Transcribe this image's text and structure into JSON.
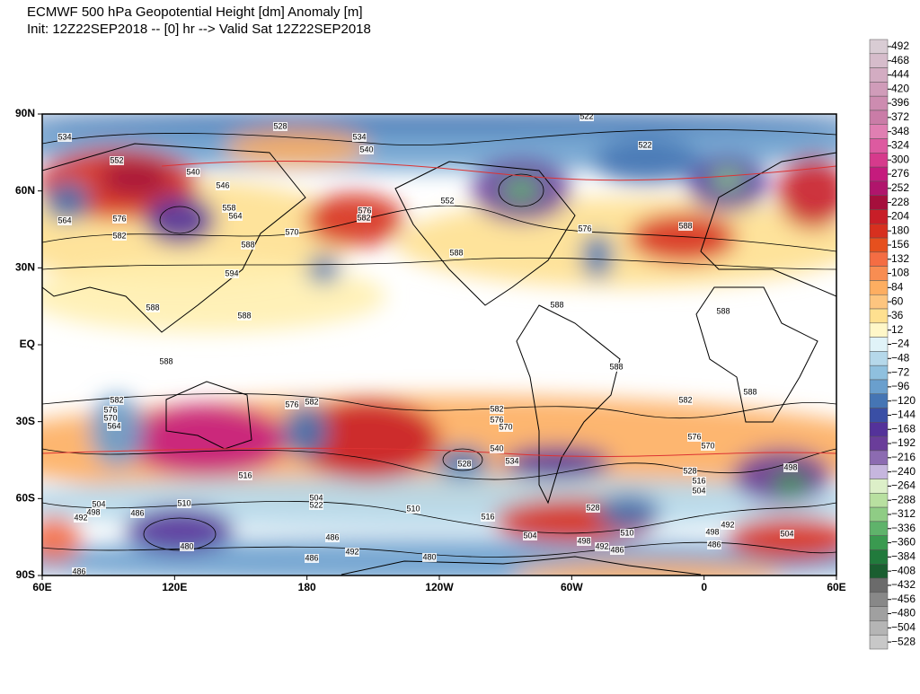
{
  "header": {
    "title": "ECMWF 500 hPa Geopotential Height [dm] Anomaly [m]",
    "subtitle": "Init: 12Z22SEP2018 -- [0] hr --> Valid Sat 12Z22SEP2018"
  },
  "map": {
    "lat_labels": [
      "90N",
      "60N",
      "30N",
      "EQ",
      "30S",
      "60S",
      "90S"
    ],
    "lon_labels": [
      "60E",
      "120E",
      "180",
      "120W",
      "60W",
      "0",
      "60E"
    ],
    "contour_labels": [
      "534",
      "528",
      "534",
      "540",
      "522",
      "522",
      "552",
      "540",
      "546",
      "558",
      "564",
      "564",
      "576",
      "582",
      "570",
      "588",
      "576",
      "582",
      "552",
      "588",
      "576",
      "588",
      "594",
      "588",
      "588",
      "588",
      "588",
      "588",
      "588",
      "582",
      "576",
      "570",
      "564",
      "576",
      "582",
      "582",
      "576",
      "570",
      "534",
      "528",
      "576",
      "570",
      "582",
      "588",
      "528",
      "516",
      "504",
      "498",
      "510",
      "504",
      "522",
      "510",
      "516",
      "528",
      "504",
      "498",
      "492",
      "486",
      "480",
      "486",
      "492",
      "486",
      "480",
      "504",
      "498",
      "492",
      "486",
      "510",
      "486",
      "492",
      "498",
      "504",
      "486",
      "516",
      "540"
    ]
  },
  "colorbar": {
    "labels": [
      "492",
      "468",
      "444",
      "420",
      "396",
      "372",
      "348",
      "324",
      "300",
      "276",
      "252",
      "228",
      "204",
      "180",
      "156",
      "132",
      "108",
      "84",
      "60",
      "36",
      "12",
      "−24",
      "−48",
      "−72",
      "−96",
      "−120",
      "−144",
      "−168",
      "−192",
      "−216",
      "−240",
      "−264",
      "−288",
      "−312",
      "−336",
      "−360",
      "−384",
      "−408",
      "−432",
      "−456",
      "−480",
      "−504",
      "−528"
    ],
    "colors": [
      "#d9ccd4",
      "#d6bccb",
      "#d3acc2",
      "#d09cb9",
      "#cd8cb0",
      "#ca7ca7",
      "#e07fb2",
      "#dd5aa0",
      "#d63a8c",
      "#c51b7d",
      "#b0156c",
      "#a50f3c",
      "#c81e28",
      "#d7301f",
      "#e6501e",
      "#f46d43",
      "#f88d52",
      "#fdae61",
      "#fdc57f",
      "#fee090",
      "#fff7c8",
      "#e0f3f8",
      "#b5d8ea",
      "#8fc0de",
      "#6a9fcd",
      "#4575b4",
      "#3a4fa5",
      "#54329a",
      "#6a3d9a",
      "#8c6bb1",
      "#c6b6de",
      "#dcefc8",
      "#b8e0a0",
      "#8fcc85",
      "#5fb36b",
      "#3a9a50",
      "#217a3c",
      "#1a5e30",
      "#6b6b6b",
      "#888888",
      "#a0a0a0",
      "#b5b5b5",
      "#c8c8c8"
    ]
  }
}
